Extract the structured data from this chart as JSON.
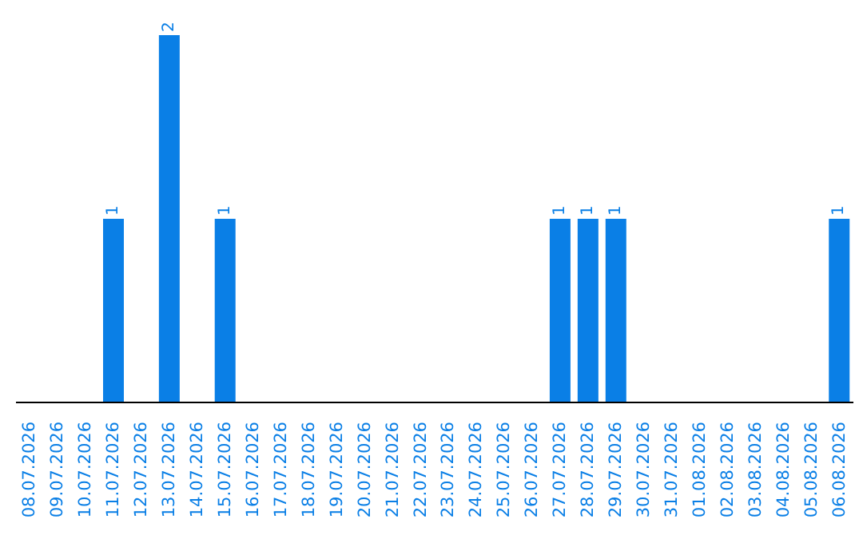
{
  "chart_data": {
    "type": "bar",
    "categories": [
      "08.07.2026",
      "09.07.2026",
      "10.07.2026",
      "11.07.2026",
      "12.07.2026",
      "13.07.2026",
      "14.07.2026",
      "15.07.2026",
      "16.07.2026",
      "17.07.2026",
      "18.07.2026",
      "19.07.2026",
      "20.07.2026",
      "21.07.2026",
      "22.07.2026",
      "23.07.2026",
      "24.07.2026",
      "25.07.2026",
      "26.07.2026",
      "27.07.2026",
      "28.07.2026",
      "29.07.2026",
      "30.07.2026",
      "31.07.2026",
      "01.08.2026",
      "02.08.2026",
      "03.08.2026",
      "04.08.2026",
      "05.08.2026",
      "06.08.2026"
    ],
    "values": [
      0,
      0,
      0,
      1,
      0,
      2,
      0,
      1,
      0,
      0,
      0,
      0,
      0,
      0,
      0,
      0,
      0,
      0,
      0,
      1,
      1,
      1,
      0,
      0,
      0,
      0,
      0,
      0,
      0,
      1
    ],
    "value_labels": [
      null,
      null,
      null,
      "1",
      null,
      "2",
      null,
      "1",
      null,
      null,
      null,
      null,
      null,
      null,
      null,
      null,
      null,
      null,
      null,
      "1",
      "1",
      "1",
      null,
      null,
      null,
      null,
      null,
      null,
      null,
      "1"
    ],
    "color": "#0a7fe6",
    "tick_labels": "x",
    "grid": false,
    "legend": false
  }
}
